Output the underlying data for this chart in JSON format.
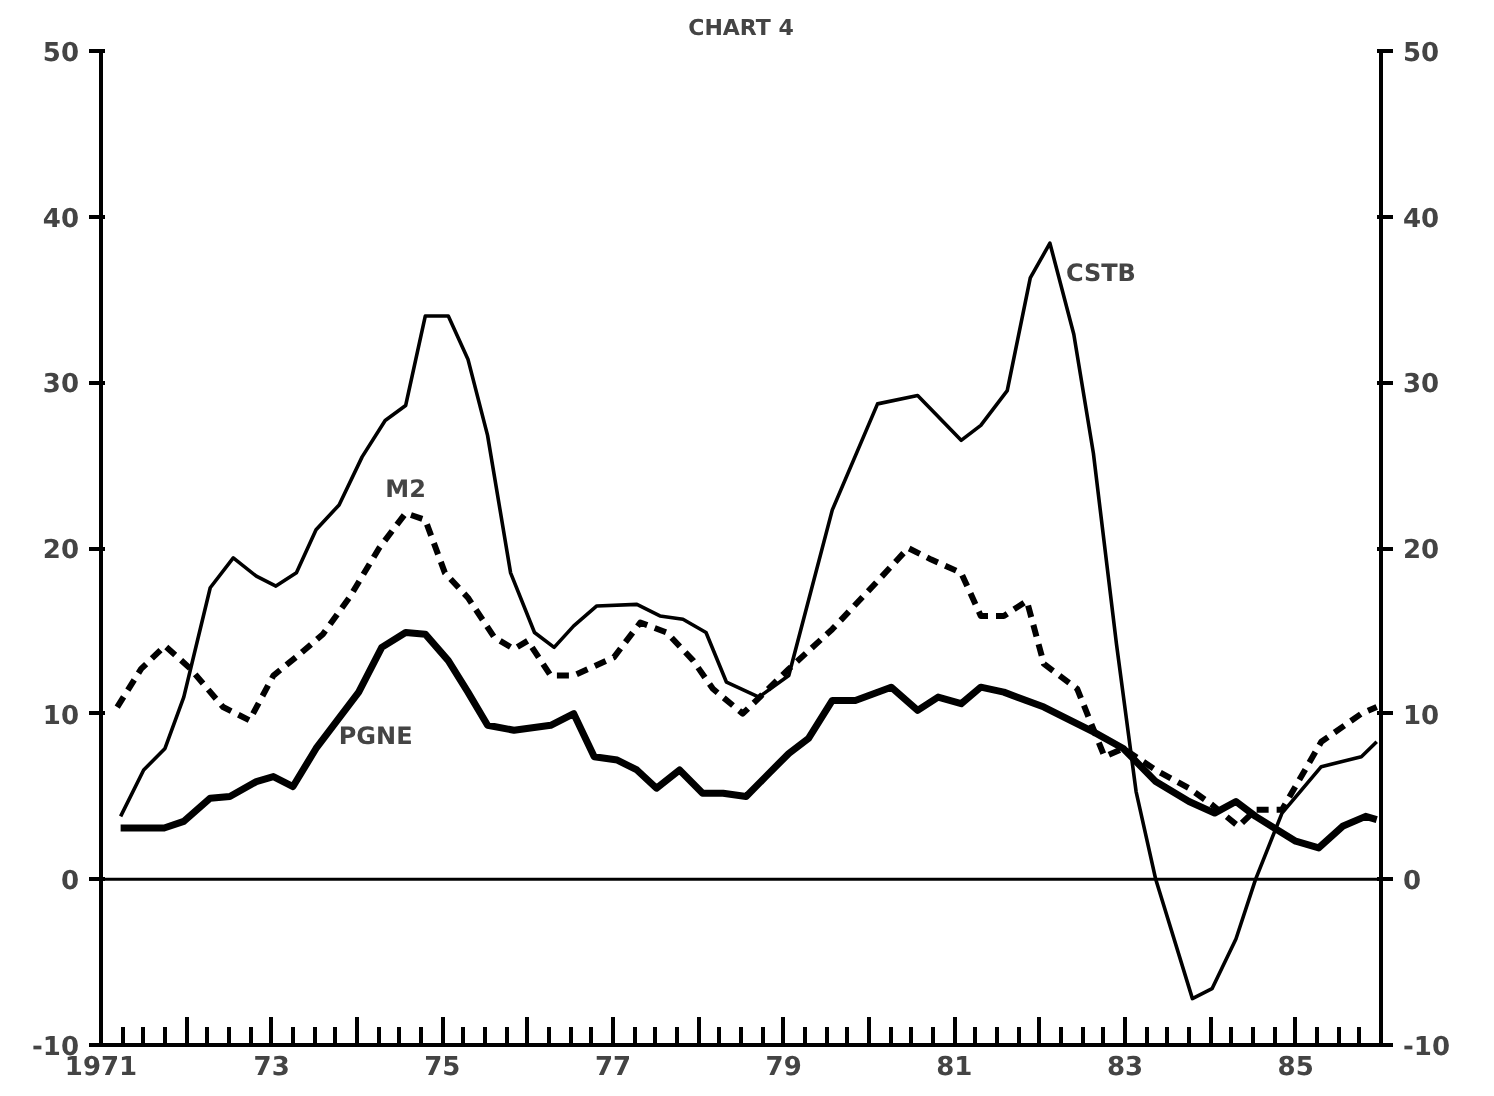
{
  "chart_data": {
    "type": "line",
    "title": "CHART 4",
    "xlim": [
      1971,
      1986
    ],
    "ylim": [
      -10,
      50
    ],
    "y2lim": [
      -10,
      50
    ],
    "xticks": [
      {
        "value": 1971,
        "label": "1971"
      },
      {
        "value": 1972,
        "label": null
      },
      {
        "value": 1973,
        "label": "73"
      },
      {
        "value": 1974,
        "label": null
      },
      {
        "value": 1975,
        "label": "75"
      },
      {
        "value": 1976,
        "label": null
      },
      {
        "value": 1977,
        "label": "77"
      },
      {
        "value": 1978,
        "label": null
      },
      {
        "value": 1979,
        "label": "79"
      },
      {
        "value": 1980,
        "label": null
      },
      {
        "value": 1981,
        "label": "81"
      },
      {
        "value": 1982,
        "label": null
      },
      {
        "value": 1983,
        "label": "83"
      },
      {
        "value": 1984,
        "label": null
      },
      {
        "value": 1985,
        "label": "85"
      }
    ],
    "yticks": [
      -10,
      0,
      10,
      20,
      30,
      40,
      50
    ],
    "y2ticks": [
      -10,
      0,
      10,
      20,
      30,
      40,
      50
    ],
    "grid": false,
    "ref_lines": [
      {
        "axis": "y",
        "value": 0,
        "color": "#000000"
      }
    ],
    "series": [
      {
        "name": "CSTB",
        "color": "#000000",
        "line_style": "solid",
        "x": [
          1971.23,
          1971.5,
          1971.75,
          1971.97,
          1972.28,
          1972.55,
          1972.82,
          1973.05,
          1973.29,
          1973.52,
          1973.79,
          1974.06,
          1974.33,
          1974.57,
          1974.8,
          1975.07,
          1975.3,
          1975.53,
          1975.8,
          1976.08,
          1976.31,
          1976.54,
          1976.81,
          1977.28,
          1977.55,
          1977.82,
          1978.09,
          1978.33,
          1978.71,
          1979.06,
          1979.57,
          1980.1,
          1980.57,
          1981.08,
          1981.31,
          1981.62,
          1981.89,
          1982.12,
          1982.4,
          1982.63,
          1982.9,
          1983.13,
          1983.36,
          1983.79,
          1984.02,
          1984.3,
          1984.53,
          1984.84,
          1985.3,
          1985.77,
          1985.95
        ],
        "values": [
          3.8,
          6.6,
          7.9,
          11,
          17.6,
          19.4,
          18.3,
          17.7,
          18.5,
          21.1,
          22.6,
          25.5,
          27.7,
          28.6,
          34,
          34,
          31.4,
          26.8,
          18.5,
          14.9,
          14,
          15.3,
          16.5,
          16.6,
          15.9,
          15.7,
          14.9,
          11.9,
          11,
          12.3,
          22.3,
          28.7,
          29.2,
          26.5,
          27.4,
          29.5,
          36.3,
          38.4,
          32.9,
          25.7,
          14.2,
          5.3,
          0,
          -7.2,
          -6.6,
          -3.6,
          0,
          4,
          6.8,
          7.4,
          8.3
        ]
      },
      {
        "name": "M2",
        "color": "#000000",
        "line_style": "dashed",
        "x": [
          1971.19,
          1971.47,
          1971.75,
          1972.05,
          1972.43,
          1972.74,
          1973.02,
          1973.33,
          1973.6,
          1973.91,
          1974.26,
          1974.57,
          1974.8,
          1975.03,
          1975.3,
          1975.61,
          1975.84,
          1976.0,
          1976.27,
          1976.54,
          1977.01,
          1977.32,
          1977.63,
          1977.94,
          1978.17,
          1978.52,
          1978.64,
          1979.06,
          1979.57,
          1980.1,
          1980.46,
          1980.73,
          1981.08,
          1981.31,
          1981.58,
          1981.85,
          1982.05,
          1982.44,
          1982.76,
          1982.98,
          1983.36,
          1983.75,
          1984.02,
          1984.33,
          1984.53,
          1984.84,
          1985.3,
          1985.77,
          1985.95
        ],
        "values": [
          10.4,
          12.7,
          14.1,
          12.7,
          10.4,
          9.6,
          12.3,
          13.6,
          14.8,
          17,
          20,
          22.1,
          21.7,
          18.5,
          17,
          14.6,
          13.9,
          14.4,
          12.3,
          12.3,
          13.4,
          15.5,
          14.9,
          13.2,
          11.5,
          10,
          10.6,
          12.7,
          15.1,
          18,
          20,
          19.3,
          18.5,
          15.9,
          15.9,
          16.8,
          13,
          11.5,
          7.4,
          7.9,
          6.6,
          5.5,
          4.5,
          3.2,
          4.2,
          4.2,
          8.3,
          10,
          10.4
        ]
      },
      {
        "name": "PGNE",
        "color": "#000000",
        "line_style": "solid",
        "x": [
          1971.23,
          1971.74,
          1971.97,
          1972.28,
          1972.51,
          1972.82,
          1973.02,
          1973.25,
          1973.52,
          1974.02,
          1974.29,
          1974.57,
          1974.8,
          1975.07,
          1975.3,
          1975.53,
          1975.84,
          1976.27,
          1976.54,
          1976.78,
          1977.05,
          1977.28,
          1977.51,
          1977.78,
          1978.05,
          1978.29,
          1978.56,
          1978.79,
          1979.06,
          1979.29,
          1979.57,
          1979.84,
          1980.26,
          1980.57,
          1980.81,
          1981.08,
          1981.31,
          1981.58,
          1982.05,
          1982.36,
          1982.63,
          1982.98,
          1983.36,
          1983.75,
          1984.05,
          1984.3,
          1984.53,
          1985.0,
          1985.27,
          1985.55,
          1985.82,
          1985.95
        ],
        "values": [
          3.1,
          3.1,
          3.5,
          4.9,
          5,
          5.9,
          6.2,
          5.6,
          7.9,
          11.3,
          14,
          14.9,
          14.8,
          13.2,
          11.3,
          9.3,
          9,
          9.3,
          10,
          7.4,
          7.2,
          6.6,
          5.5,
          6.6,
          5.2,
          5.2,
          5,
          6.2,
          7.6,
          8.5,
          10.8,
          10.8,
          11.6,
          10.2,
          11,
          10.6,
          11.6,
          11.3,
          10.4,
          9.6,
          8.9,
          7.9,
          5.9,
          4.7,
          4,
          4.7,
          3.8,
          2.3,
          1.9,
          3.2,
          3.8,
          3.6
        ]
      }
    ]
  }
}
